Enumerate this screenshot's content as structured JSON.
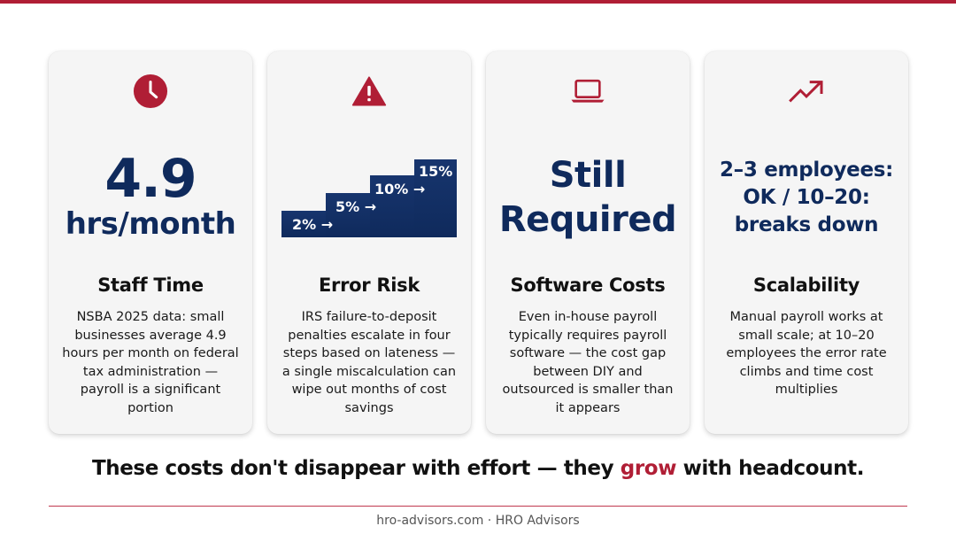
{
  "cards": [
    {
      "icon": "clock-icon",
      "hero_big": "4.9",
      "hero_sub": "hrs/month",
      "title": "Staff Time",
      "description": "NSBA 2025 data: small businesses average 4.9 hours per month on federal tax administration — payroll is a significant portion"
    },
    {
      "icon": "warning-triangle-icon",
      "steps": [
        "2% →",
        "5% →",
        "10% →",
        "15%"
      ],
      "title": "Error Risk",
      "description": "IRS failure-to-deposit penalties escalate in four steps based on lateness — a single miscalculation can wipe out months of cost savings"
    },
    {
      "icon": "laptop-icon",
      "hero_line1": "Still",
      "hero_line2": "Required",
      "title": "Software Costs",
      "description": "Even in-house payroll typically requires payroll software — the cost gap between DIY and outsourced is smaller than it appears"
    },
    {
      "icon": "trending-up-icon",
      "hero_line1": "2–3 employees:",
      "hero_line2": "OK / 10–20:",
      "hero_line3": "breaks down",
      "title": "Scalability",
      "description": "Manual payroll works at small scale; at 10–20 employees the error rate climbs and time cost multiplies"
    }
  ],
  "tagline": {
    "before": "These costs don't disappear with effort — they ",
    "accent": "grow",
    "after": " with headcount."
  },
  "footer": "hro-advisors.com · HRO Advisors",
  "colors": {
    "accent": "#b01e35",
    "navy": "#0f2a5c"
  }
}
